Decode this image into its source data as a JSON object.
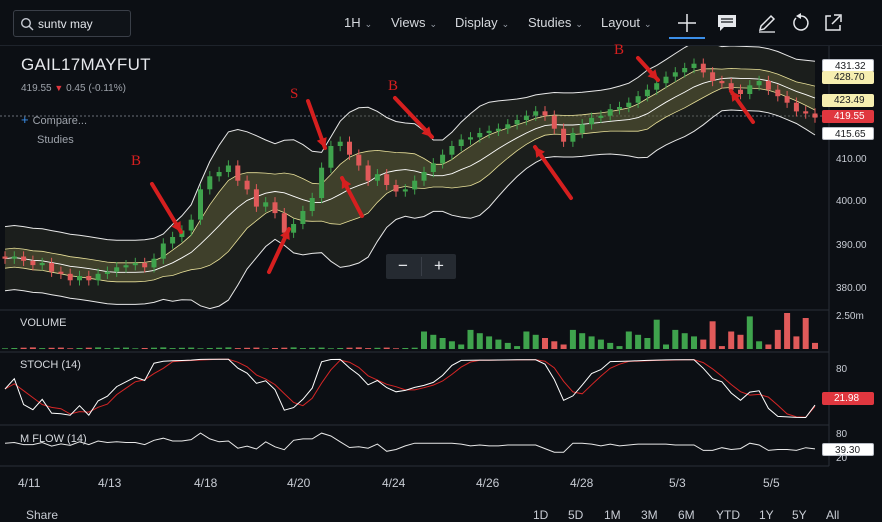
{
  "toolbar": {
    "search_value": "suntv may",
    "interval": "1H",
    "views": "Views",
    "display": "Display",
    "studies": "Studies",
    "layout": "Layout"
  },
  "symbol": {
    "name": "GAIL17MAYFUT",
    "last": "419.55",
    "change": "0.45 (-0.11%)",
    "compare": "Compare...",
    "studies": "Studies"
  },
  "panels": {
    "volume": "VOLUME",
    "stoch": "STOCH (14)",
    "mflow": "M FLOW (14)"
  },
  "price_axis": {
    "ticks": [
      "410.00",
      "400.00",
      "390.00",
      "380.00"
    ],
    "tags": [
      "431.32",
      "428.70",
      "423.49",
      "419.55",
      "415.65"
    ],
    "volume_max": "2.50m",
    "stoch_tick_80": "80",
    "stoch_value": "21.98",
    "mflow_tick_80": "80",
    "mflow_tick_20": "20",
    "mflow_value": "39.30"
  },
  "date_axis": [
    "4/11",
    "4/13",
    "4/18",
    "4/20",
    "4/24",
    "4/26",
    "4/28",
    "5/3",
    "5/5"
  ],
  "bottom": {
    "share": "Share",
    "periods": [
      "1D",
      "5D",
      "1M",
      "3M",
      "6M",
      "YTD",
      "1Y",
      "5Y",
      "All"
    ]
  },
  "annotations": [
    "B",
    "S",
    "B",
    "B"
  ],
  "colors": {
    "bg": "#0c0f14",
    "up": "#3fa34d",
    "down": "#e05a5a",
    "accent": "#3b8ee8",
    "annotation": "#d61f1f"
  },
  "chart_data": {
    "type": "candlestick",
    "title": "GAIL17MAYFUT",
    "interval": "1H",
    "ylim": [
      376,
      436
    ],
    "y_ticks": [
      380,
      390,
      400,
      410
    ],
    "x_categories": [
      "4/11",
      "4/13",
      "4/18",
      "4/20",
      "4/24",
      "4/26",
      "4/28",
      "5/3",
      "5/5"
    ],
    "last_price": 419.55,
    "studies": [
      "Bollinger Bands",
      "VOLUME",
      "STOCH (14)",
      "M FLOW (14)"
    ],
    "close_series": [
      387,
      387.5,
      386.5,
      385.5,
      386,
      384,
      383.5,
      382,
      383,
      382,
      383.5,
      384,
      385,
      385.5,
      386,
      385,
      387,
      390.5,
      392,
      393.5,
      396,
      403,
      406,
      407,
      408.5,
      405,
      403,
      399,
      400,
      397.5,
      393,
      395,
      398,
      401,
      408,
      413,
      414,
      411,
      408.5,
      405,
      406.5,
      404,
      402.5,
      403,
      405,
      407,
      409,
      411,
      413,
      414.5,
      415,
      416,
      416.5,
      417,
      418,
      419,
      420,
      421,
      420,
      417,
      414,
      416,
      418,
      419.5,
      420,
      421.5,
      422,
      423,
      424.5,
      426,
      427.5,
      429,
      430,
      431,
      432,
      430,
      428,
      427.5,
      426,
      425,
      427,
      428,
      426,
      424.5,
      423,
      421,
      420.5,
      419.55
    ],
    "stoch_last": 21.98,
    "mflow_last": 39.3
  }
}
